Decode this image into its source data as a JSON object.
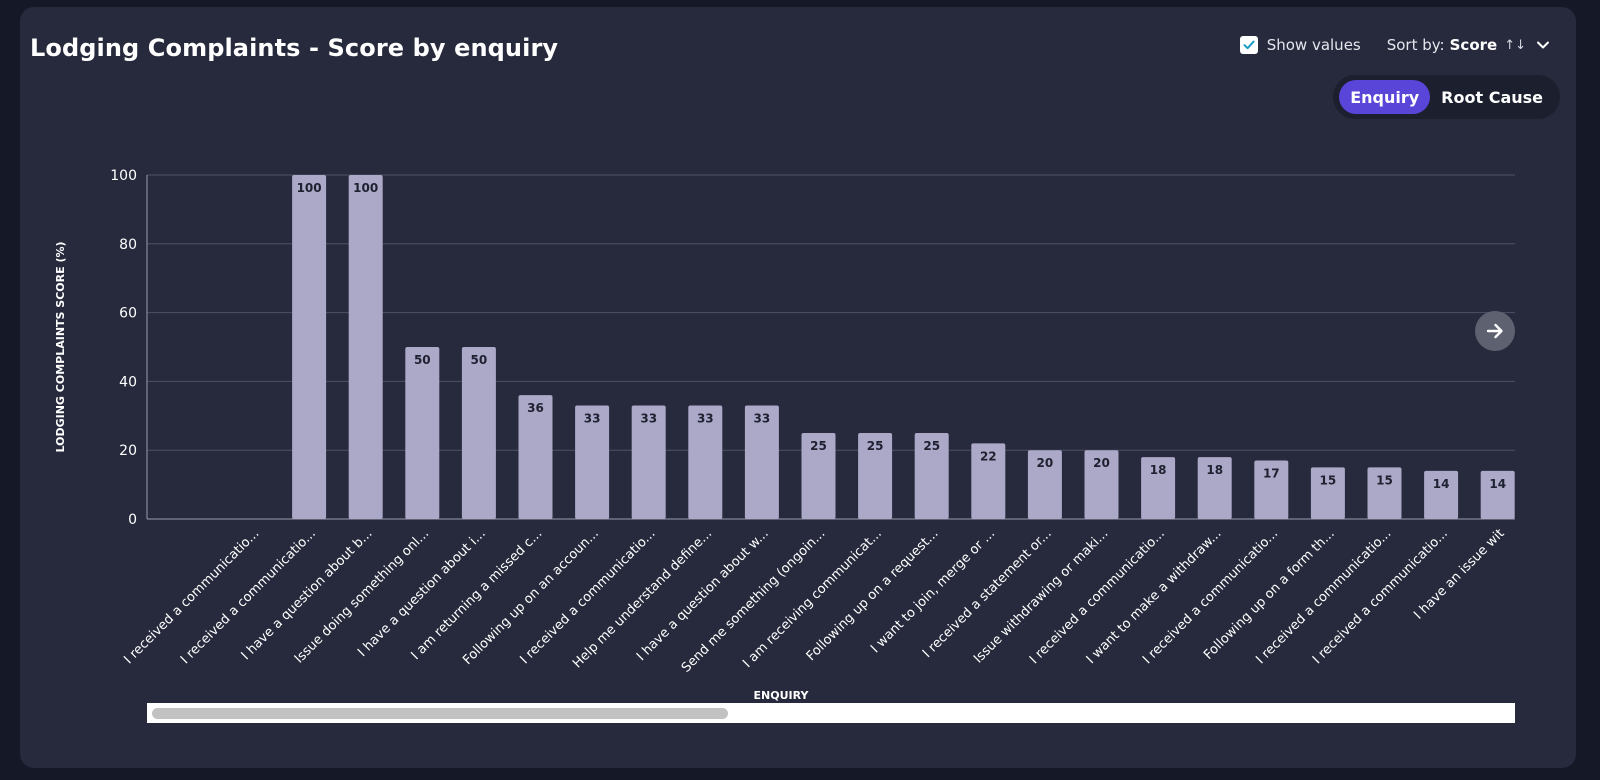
{
  "title": "Lodging Complaints - Score by enquiry",
  "controls": {
    "show_values_label": "Show values",
    "show_values_checked": true,
    "sort_prefix": "Sort by:",
    "sort_value": "Score",
    "sort_arrows": "↑↓"
  },
  "toggle": {
    "options": [
      "Enquiry",
      "Root Cause"
    ],
    "active": "Enquiry"
  },
  "colors": {
    "bar": "#aca8c8",
    "grid": "#4e5163",
    "axis": "#9a9cae",
    "toggle_active": "#5a45d9"
  },
  "chart_data": {
    "type": "bar",
    "title": "Lodging Complaints - Score by enquiry",
    "xlabel": "ENQUIRY",
    "ylabel": "LODGING COMPLAINTS SCORE (%)",
    "ylim": [
      0,
      100
    ],
    "yticks": [
      0,
      20,
      40,
      60,
      80,
      100
    ],
    "grid": true,
    "show_values": true,
    "categories": [
      "I received a communicatio...",
      "I received a communicatio...",
      "I have a question about b...",
      "Issue doing something onl...",
      "I have a question about i...",
      "I am returning a missed c...",
      "Following up on an accoun...",
      "I received a communicatio...",
      "Help me understand define...",
      "I have a question about w...",
      "Send me something (ongoin...",
      "I am receiving communicat...",
      "Following up on a request...",
      "I want to join, merge or ...",
      "I received a statement or...",
      "Issue withdrawing or maki...",
      "I received a communicatio...",
      "I want to make a withdraw...",
      "I received a communicatio...",
      "Following up on a form th...",
      "I received a communicatio...",
      "I received a communicatio...",
      "I have an issue wit"
    ],
    "values": [
      null,
      100,
      100,
      50,
      50,
      36,
      33,
      33,
      33,
      33,
      25,
      25,
      25,
      22,
      20,
      20,
      18,
      18,
      17,
      15,
      15,
      14,
      14
    ]
  }
}
